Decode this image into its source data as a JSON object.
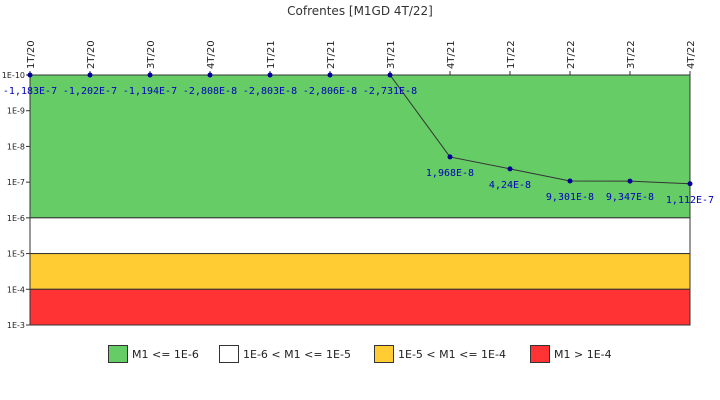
{
  "chart_data": {
    "type": "line",
    "title": "Cofrentes [M1GD 4T/22]",
    "categories": [
      "1T/20",
      "2T/20",
      "3T/20",
      "4T/20",
      "1T/21",
      "2T/21",
      "3T/21",
      "4T/21",
      "1T/22",
      "2T/22",
      "3T/22",
      "4T/22"
    ],
    "values": [
      1e-10,
      1e-10,
      1e-10,
      1e-10,
      1e-10,
      1e-10,
      1e-10,
      1.968e-08,
      4.24e-08,
      9.301e-08,
      9.347e-08,
      1.112e-07
    ],
    "data_labels": [
      "-1,183E-7",
      "-1,202E-7",
      "-1,194E-7",
      "-2,808E-8",
      "-2,803E-8",
      "-2,806E-8",
      "-2,731E-8",
      "1,968E-8",
      "4,24E-8",
      "9,301E-8",
      "9,347E-8",
      "1,112E-7"
    ],
    "y_axis": {
      "scale": "log",
      "inverted": true,
      "tick_labels": [
        "1E-10",
        "1E-9",
        "1E-8",
        "1E-7",
        "1E-6",
        "1E-5",
        "1E-4",
        "1E-3"
      ],
      "ylim": [
        1e-10,
        0.001
      ]
    },
    "bands": [
      {
        "from": 1e-10,
        "to": 1e-06,
        "color": "#66cc66",
        "legend": "M1 <= 1E-6"
      },
      {
        "from": 1e-06,
        "to": 1e-05,
        "color": "#ffffff",
        "legend": "1E-6 < M1 <= 1E-5"
      },
      {
        "from": 1e-05,
        "to": 0.0001,
        "color": "#ffcc33",
        "legend": "1E-5 < M1 <= 1E-4"
      },
      {
        "from": 0.0001,
        "to": 0.001,
        "color": "#ff3333",
        "legend": "M1 > 1E-4"
      }
    ],
    "line_color": "#333333",
    "marker_color": "#000099",
    "label_color": "#0000bb",
    "grid": false,
    "legend_position": "bottom"
  }
}
